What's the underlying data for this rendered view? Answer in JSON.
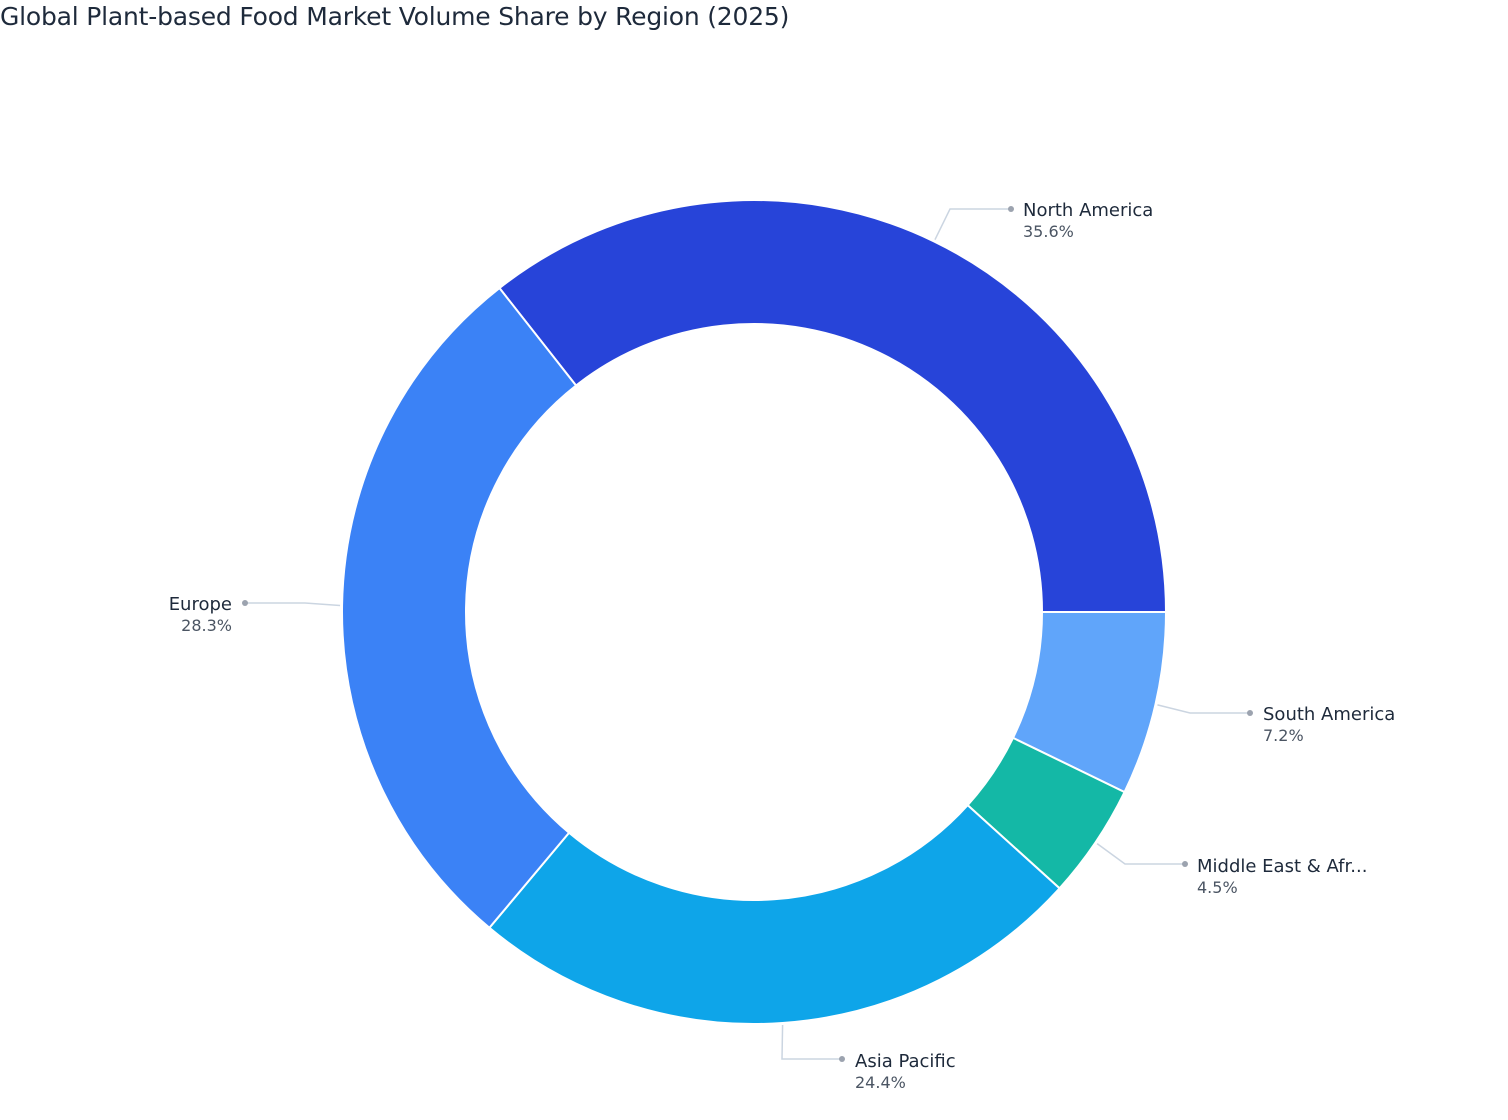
{
  "title": "Global Plant-based Food Market Volume Share by Region (2025)",
  "chart_data": {
    "type": "pie",
    "variant": "donut",
    "title": "Global Plant-based Food Market Volume Share by Region (2025)",
    "categories": [
      "North America",
      "South America",
      "Middle East & Africa",
      "Asia Pacific",
      "Europe"
    ],
    "display_labels": [
      "North America",
      "South America",
      "Middle East & Afr...",
      "Asia Pacific",
      "Europe"
    ],
    "values": [
      35.6,
      7.2,
      4.5,
      24.4,
      28.3
    ],
    "value_labels": [
      "35.6%",
      "7.2%",
      "4.5%",
      "24.4%",
      "28.3%"
    ],
    "colors": [
      "#2744d9",
      "#60a5fa",
      "#14b8a6",
      "#0ea5e9",
      "#3b82f6"
    ],
    "unit": "%",
    "legend": "none (outside labels with leader lines)",
    "grid": false
  }
}
